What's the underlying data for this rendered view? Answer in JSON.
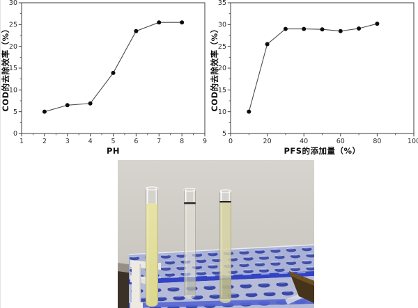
{
  "figure": {
    "background": "#ffffff",
    "kind": "two line charts above a laboratory photo"
  },
  "chart_data": [
    {
      "type": "line",
      "title": "",
      "xlabel": "PH",
      "ylabel": "COD的去除效率（%）",
      "x": [
        2,
        3,
        4,
        5,
        6,
        7,
        8
      ],
      "y": [
        5,
        6.5,
        6.9,
        13.9,
        23.5,
        25.5,
        25.5
      ],
      "xlim": [
        1,
        9
      ],
      "ylim": [
        0,
        30
      ],
      "xticks": [
        1,
        2,
        3,
        4,
        5,
        6,
        7,
        8,
        9
      ],
      "yticks": [
        0,
        5,
        10,
        15,
        20,
        25,
        30
      ],
      "x_minor_step": 0.5,
      "y_minor_step": 2.5,
      "grid": false,
      "legend": null,
      "frame": "box",
      "line_color": "#4b4b4b",
      "marker_color": "#0c0c0c",
      "axis_color": "#3c3c3c"
    },
    {
      "type": "line",
      "title": "",
      "xlabel": "PFS的添加量（%）",
      "ylabel": "COD的去除效率（%）",
      "x": [
        10,
        20,
        30,
        40,
        50,
        60,
        70,
        80
      ],
      "y": [
        10,
        25.5,
        29,
        29,
        28.9,
        28.5,
        29.1,
        30.2
      ],
      "xlim": [
        0,
        100
      ],
      "ylim": [
        5,
        35
      ],
      "xticks": [
        0,
        20,
        40,
        60,
        80,
        100
      ],
      "yticks": [
        5,
        10,
        15,
        20,
        25,
        30,
        35
      ],
      "x_minor_step": 10,
      "y_minor_step": 2.5,
      "grid": false,
      "legend": null,
      "frame": "box",
      "line_color": "#4b4b4b",
      "marker_color": "#0c0c0c",
      "axis_color": "#3c3c3c"
    }
  ],
  "photo": {
    "content": "three test tubes standing in a blue perforated plastic rack against a grey wall",
    "wall_top": "#d7d4cf",
    "wall_bottom": "#c5c1ba",
    "baseboard_gray": "#958f86",
    "floor_brown": "#3c3126",
    "rack_top_surface": "#a9b1d6",
    "rack_front": "#b6bcd8",
    "rack_stripe": "#3244c4",
    "rack_bottom_stripe": "#5565d2",
    "hole_dark": "#28389e",
    "hole_glint": "#e4eaff",
    "frame_white": "#edeae4",
    "wood_block_dark": "#45331a",
    "wood_block_light": "#6e4f22",
    "glass_highlight": "#f7f6f2",
    "tubes": [
      {
        "name": "tube-1",
        "appearance": "opaque pale-yellow liquid, filled high",
        "liquid": "#dcd78f",
        "liquid_top": "#e7e3a6",
        "ring": null
      },
      {
        "name": "tube-2",
        "appearance": "translucent near-clear pale liquid with dark meniscus ring",
        "liquid": "#e6e3d8",
        "liquid_top": "#ece9df",
        "ring": "#23231f"
      },
      {
        "name": "tube-3",
        "appearance": "translucent pale yellow-green liquid with dark meniscus ring",
        "liquid": "#d8d4a2",
        "liquid_top": "#dfdbb0",
        "ring": "#2b2b24"
      }
    ]
  }
}
